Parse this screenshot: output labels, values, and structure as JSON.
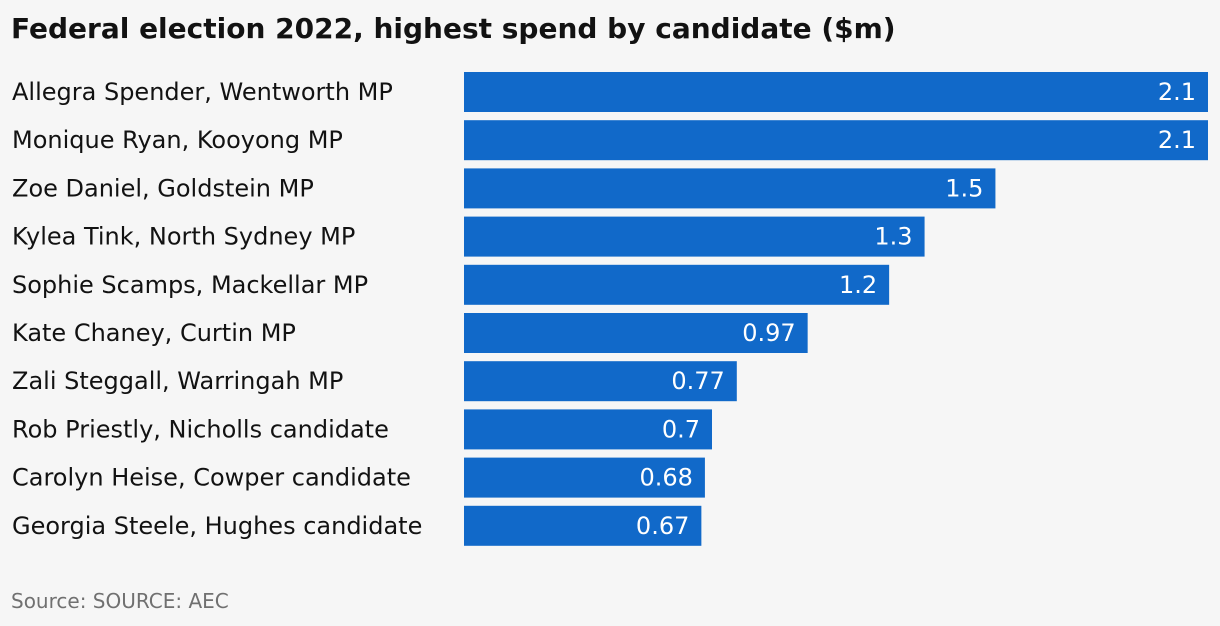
{
  "chart_data": {
    "type": "bar",
    "orientation": "horizontal",
    "title": "Federal election 2022, highest spend by candidate ($m)",
    "categories": [
      "Allegra Spender, Wentworth MP",
      "Monique Ryan, Kooyong MP",
      "Zoe Daniel, Goldstein MP",
      "Kylea Tink, North Sydney MP",
      "Sophie Scamps, Mackellar MP",
      "Kate Chaney, Curtin MP",
      "Zali Steggall, Warringah MP",
      "Rob Priestly, Nicholls candidate",
      "Carolyn Heise, Cowper candidate",
      "Georgia Steele, Hughes candidate"
    ],
    "values": [
      2.1,
      2.1,
      1.5,
      1.3,
      1.2,
      0.97,
      0.77,
      0.7,
      0.68,
      0.67
    ],
    "value_labels": [
      "2.1",
      "2.1",
      "1.5",
      "1.3",
      "1.2",
      "0.97",
      "0.77",
      "0.7",
      "0.68",
      "0.67"
    ],
    "xlim": [
      0,
      2.1
    ],
    "grid": false,
    "legend": "none",
    "bar_color": "#1169c9",
    "source": "Source: SOURCE: AEC"
  }
}
